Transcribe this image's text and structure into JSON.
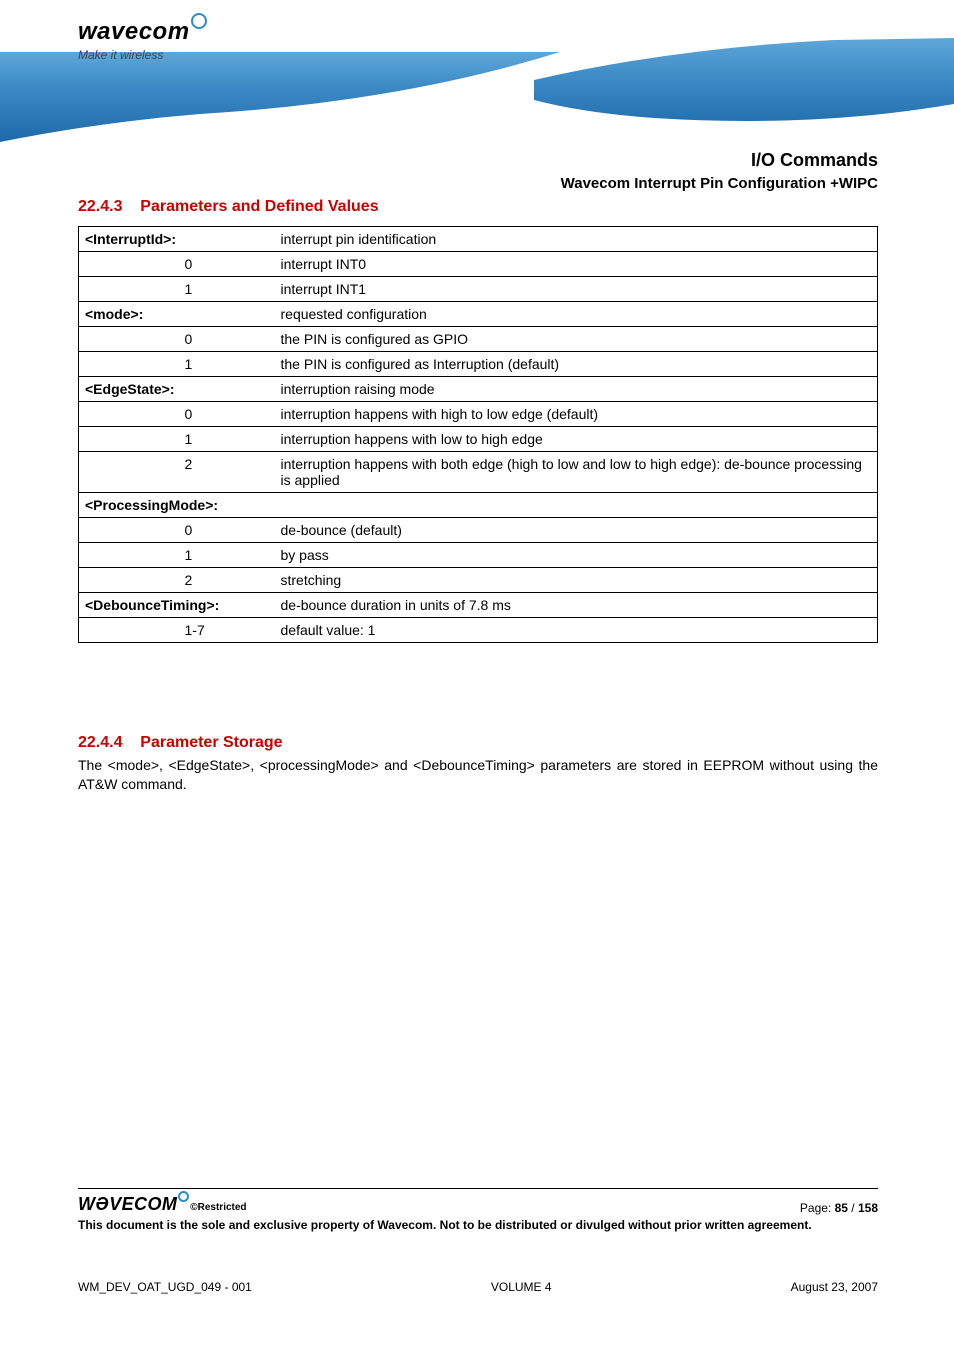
{
  "colors": {
    "accent_red": "#cc0000",
    "ribbon_top": "#5ea7d8",
    "ribbon_mid": "#3b89c4",
    "ribbon_bot": "#1d6aab",
    "swirl": "#2a8cc9",
    "text": "#000000",
    "background": "#ffffff"
  },
  "fonts": {
    "body_family": "Arial, Helvetica, sans-serif",
    "body_size_pt": 10.5,
    "section_red_size_pt": 12,
    "title_size_pt": 13.5
  },
  "header": {
    "logo_word": "wavecom",
    "logo_tag": "Make it wireless"
  },
  "breadcrumb": {
    "line1": "I/O Commands",
    "line2": "Wavecom Interrupt Pin Configuration +WIPC"
  },
  "section_2243": {
    "number": "22.4.3",
    "title": "Parameters and Defined Values"
  },
  "params": {
    "rows": [
      {
        "a": "<InterruptId>:",
        "b": "",
        "c": "interrupt pin identification",
        "span": "ab",
        "bold_a": true
      },
      {
        "a": "",
        "b": "0",
        "c": "interrupt INT0"
      },
      {
        "a": "",
        "b": "1",
        "c": "interrupt INT1"
      },
      {
        "a": "<mode>:",
        "b": "",
        "c": "requested configuration",
        "span": "ab",
        "bold_a": true
      },
      {
        "a": "",
        "b": "0",
        "c": "the PIN is configured as GPIO"
      },
      {
        "a": "",
        "b": "1",
        "c": "the PIN is configured as Interruption (default)"
      },
      {
        "a": "<EdgeState>:",
        "b": "",
        "c": "interruption raising mode",
        "span": "ab",
        "bold_a": true
      },
      {
        "a": "",
        "b": "0",
        "c": "interruption happens with high to low edge (default)"
      },
      {
        "a": "",
        "b": "1",
        "c": "interruption happens with low to high edge"
      },
      {
        "a": "",
        "b": "2",
        "c": "interruption happens with both edge (high to low and low to high edge): de-bounce processing is applied"
      },
      {
        "a": "<ProcessingMode>:",
        "b": "",
        "c": "",
        "span": "full",
        "bold_a": true
      },
      {
        "a": "",
        "b": "0",
        "c": "de-bounce (default)"
      },
      {
        "a": "",
        "b": "1",
        "c": "by pass"
      },
      {
        "a": "",
        "b": "2",
        "c": "stretching"
      },
      {
        "a": "<DebounceTiming>:",
        "b": "",
        "c": "de-bounce duration in units of 7.8 ms",
        "span": "ab",
        "bold_a": true
      },
      {
        "a": "",
        "b": "1-7",
        "c": "default value: 1"
      }
    ]
  },
  "section_2244": {
    "number": "22.4.4",
    "title": "Parameter Storage",
    "body": "The <mode>, <EdgeState>, <processingMode> and <DebounceTiming> parameters are stored in EEPROM without using the AT&W command."
  },
  "footer": {
    "logo_word": "WƏVECOM",
    "restricted": "©Restricted",
    "page_label": "Page: ",
    "page_current": "85",
    "page_sep": " / ",
    "page_total": "158",
    "disclaimer": "This document is the sole and exclusive property of Wavecom. Not to be distributed or divulged without prior written agreement.",
    "doc_id": "WM_DEV_OAT_UGD_049 - 001",
    "volume": "VOLUME 4",
    "date": "August 23, 2007"
  }
}
